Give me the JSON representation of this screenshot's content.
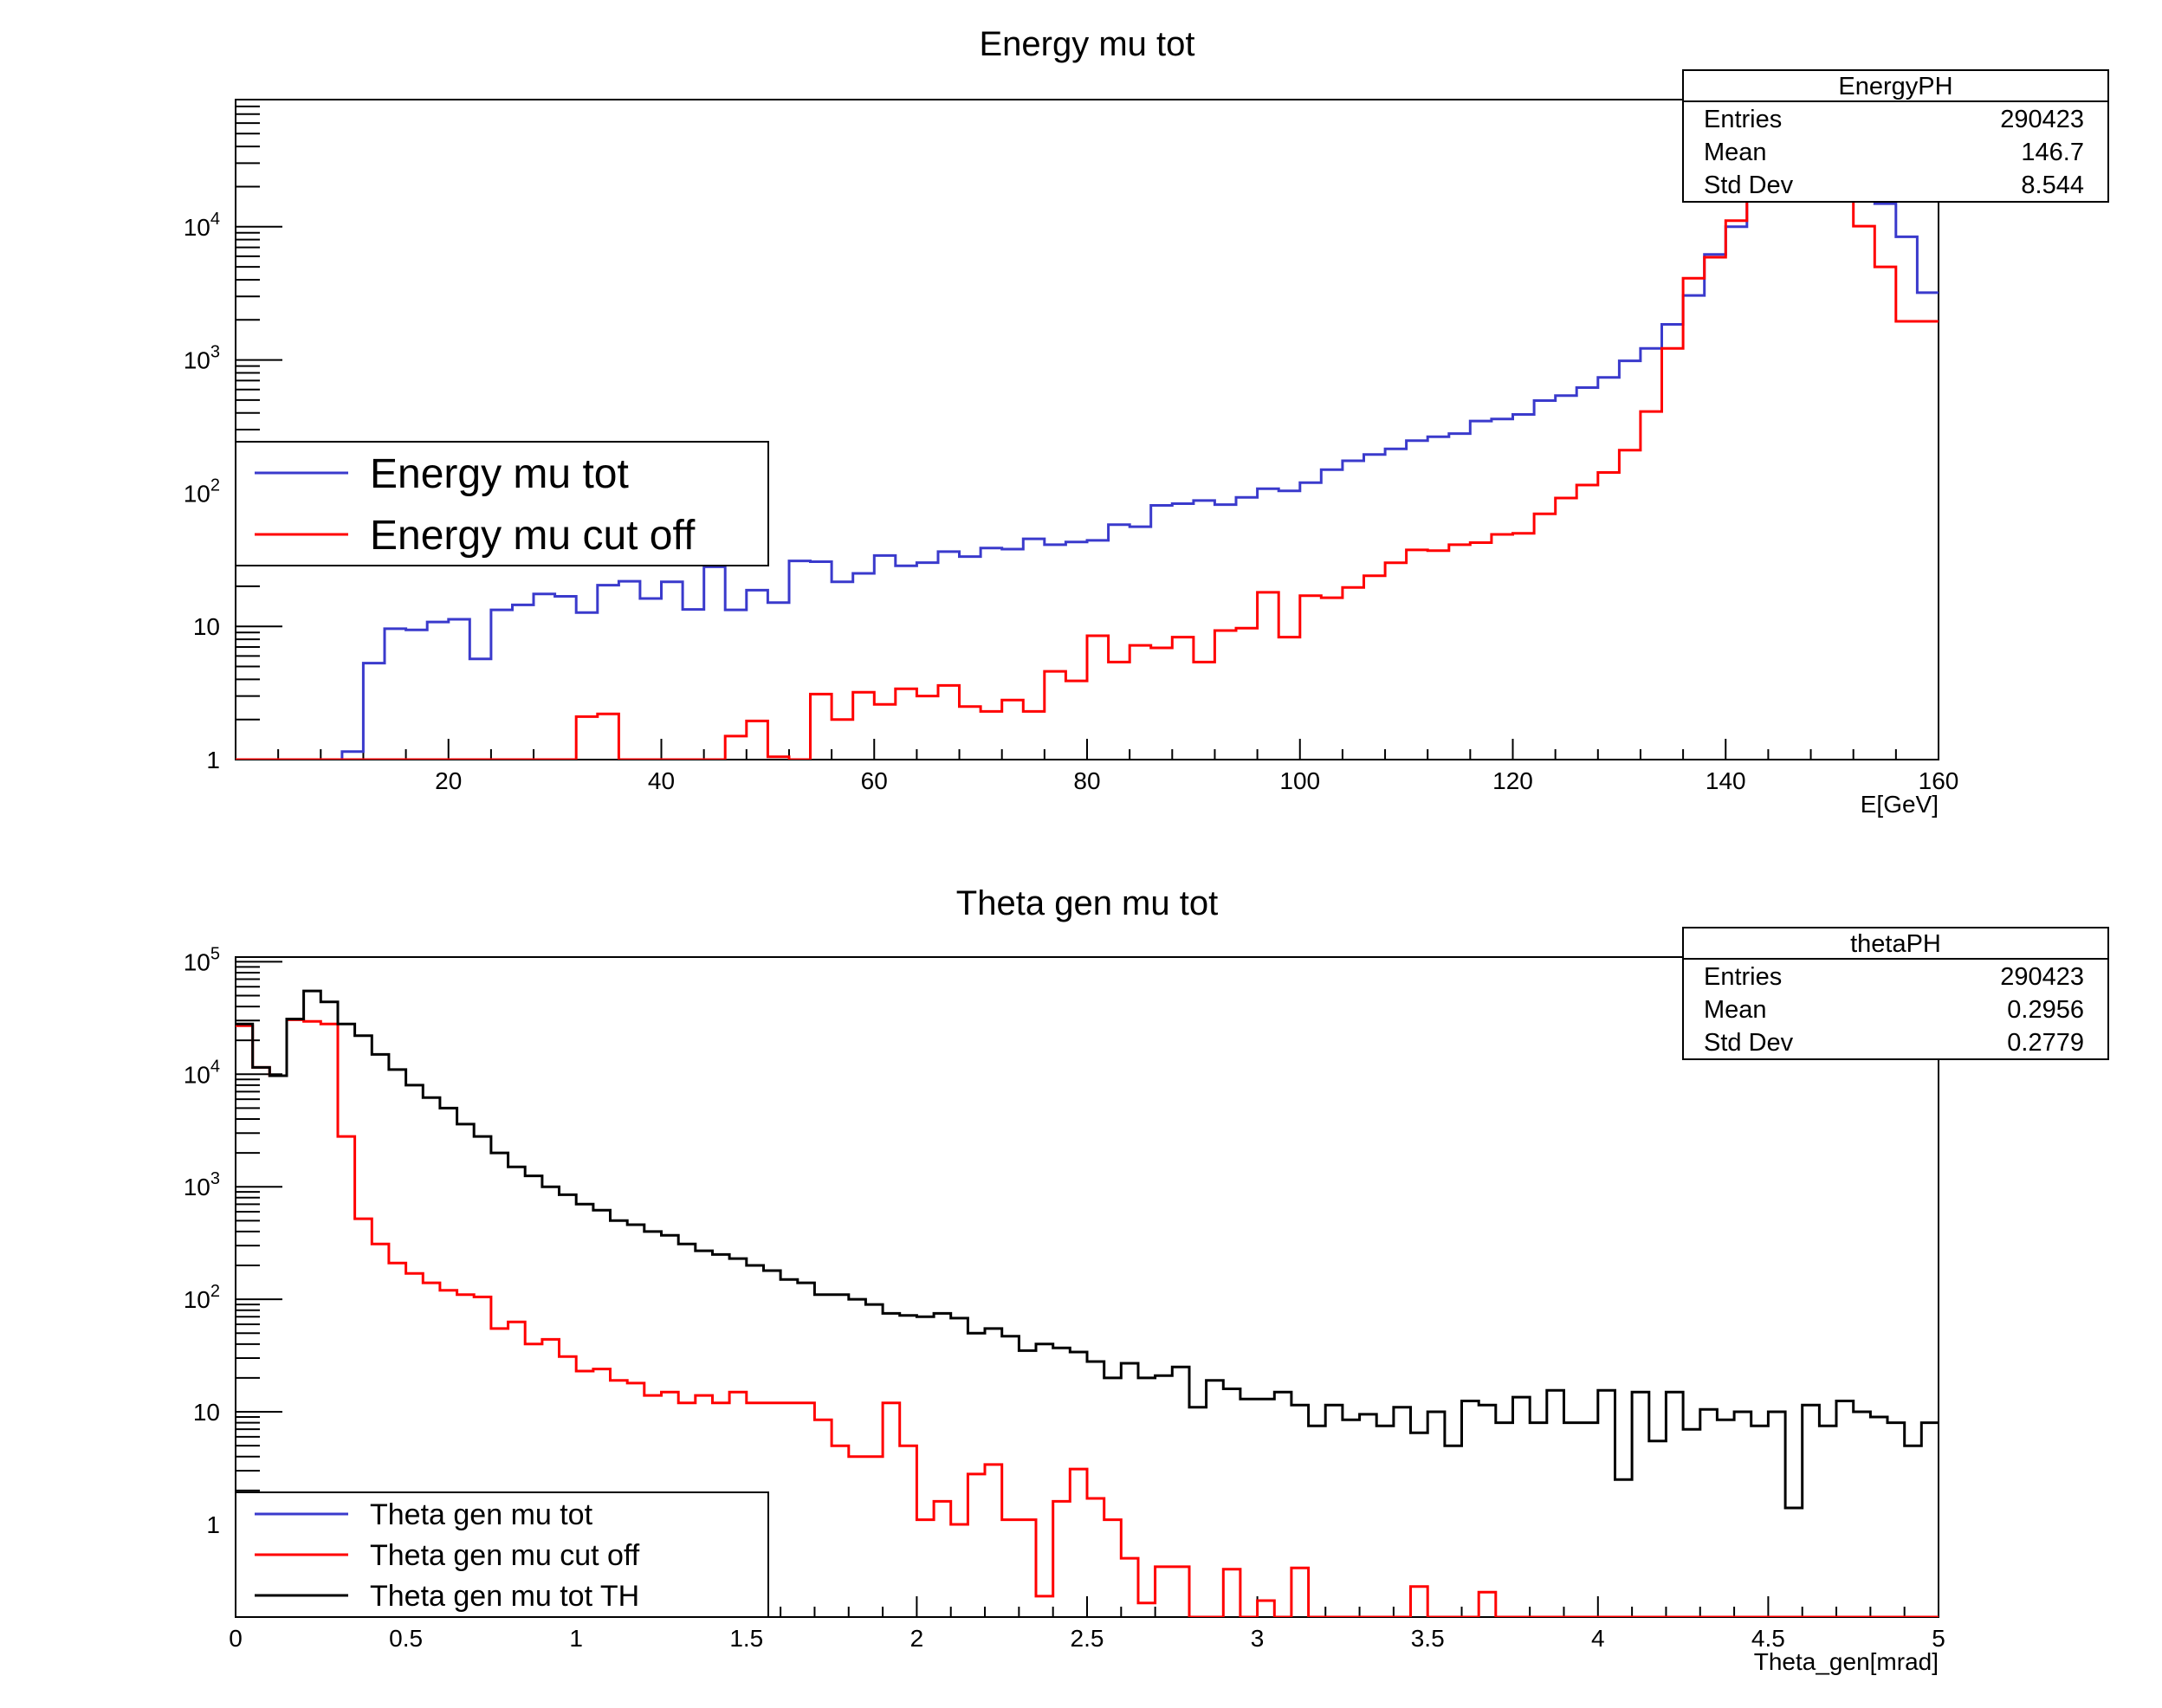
{
  "chart_data": [
    {
      "type": "histogram-step",
      "title": "Energy mu tot",
      "xlabel": "E[GeV]",
      "ylabel": "",
      "xlim": [
        0,
        160
      ],
      "ylim": [
        1,
        90000
      ],
      "yscale": "log",
      "x_ticks": [
        "20",
        "40",
        "60",
        "80",
        "100",
        "120",
        "140",
        "160"
      ],
      "y_ticks": [
        "1",
        "10",
        "10^2",
        "10^3",
        "10^4"
      ],
      "bin_width": 2,
      "legend": {
        "placement": "middle-left"
      },
      "series": [
        {
          "name": "Energy mu tot",
          "color": "#3a3acc",
          "x_start": 0,
          "values": [
            1,
            1,
            1,
            1,
            1,
            1.15,
            5.3,
            9.6,
            9.4,
            10.8,
            11.3,
            5.7,
            13.3,
            14.5,
            17.5,
            16.8,
            12.7,
            20.4,
            21.8,
            16.2,
            21.6,
            13.4,
            28,
            13.3,
            18.7,
            15.1,
            31,
            30.6,
            21.6,
            25,
            34,
            28.5,
            30.1,
            36.4,
            33.4,
            38.7,
            38,
            45.4,
            41,
            43,
            44.2,
            58,
            56,
            81,
            83.4,
            88,
            82,
            93,
            108,
            104,
            120,
            150,
            175,
            195,
            215,
            248,
            265,
            280,
            348,
            360,
            390,
            495,
            540,
            620,
            740,
            985,
            1220,
            1850,
            3050,
            6200,
            10000,
            16700,
            22400,
            23500,
            24000,
            23800,
            21800,
            14900,
            8400,
            3200
          ]
        },
        {
          "name": "Energy mu cut off",
          "color": "#ff0000",
          "x_start": 0,
          "values": [
            1,
            1,
            1,
            1,
            1,
            1,
            1,
            1,
            1,
            1,
            1,
            1,
            1,
            1,
            1,
            1,
            2.1,
            2.2,
            1,
            1,
            1,
            1,
            1,
            1.5,
            1.95,
            1.05,
            1,
            3.1,
            2,
            3.2,
            2.6,
            3.4,
            3,
            3.6,
            2.5,
            2.3,
            2.8,
            2.3,
            4.6,
            3.9,
            8.5,
            5.4,
            7.2,
            6.9,
            8.3,
            5.4,
            9.3,
            9.7,
            18,
            8.3,
            17,
            16.4,
            19.6,
            24,
            30,
            37.5,
            37,
            41,
            42.5,
            49,
            50,
            70,
            92,
            115,
            143,
            210,
            410,
            1220,
            4100,
            5900,
            11100,
            17000,
            19200,
            20000,
            19400,
            15700,
            10100,
            5000,
            1950,
            1950
          ]
        }
      ],
      "stats_box": {
        "title": "EnergyPH",
        "rows": [
          {
            "label": "Entries",
            "value": "290423"
          },
          {
            "label": "Mean",
            "value": "146.7"
          },
          {
            "label": "Std Dev",
            "value": "8.544"
          }
        ]
      }
    },
    {
      "type": "histogram-step",
      "title": "Theta gen mu tot",
      "xlabel": "Theta_gen[mrad]",
      "ylabel": "",
      "xlim": [
        0,
        5
      ],
      "ylim": [
        0.15,
        110000
      ],
      "yscale": "log",
      "x_ticks": [
        "0",
        "0.5",
        "1",
        "1.5",
        "2",
        "2.5",
        "3",
        "3.5",
        "4",
        "4.5",
        "5"
      ],
      "y_ticks": [
        "1",
        "10",
        "10^2",
        "10^3",
        "10^4",
        "10^5"
      ],
      "bin_width": 0.05,
      "legend": {
        "placement": "bottom-left"
      },
      "series": [
        {
          "name": "Theta gen mu tot",
          "color": "#3a3acc",
          "x_start": 0,
          "values": []
        },
        {
          "name": "Theta gen mu cut off",
          "color": "#ff0000",
          "x_start": 0,
          "values": [
            27000,
            11500,
            9700,
            30500,
            29500,
            28000,
            2800,
            520,
            310,
            210,
            170,
            140,
            120,
            110,
            105,
            55,
            63,
            40,
            44,
            31,
            23,
            24,
            19,
            18,
            14,
            15,
            12,
            14,
            12,
            15,
            12,
            12,
            12,
            12,
            8.5,
            5,
            4,
            4,
            12,
            5,
            1.1,
            1.6,
            1,
            2.8,
            3.4,
            1.1,
            1.1,
            0.23,
            1.6,
            3.1,
            1.7,
            1.1,
            0.5,
            0.2,
            0.42,
            0.42,
            0.1,
            0.1,
            0.4,
            0.14,
            0.21,
            0.1,
            0.41,
            0.1,
            0.1,
            0.1,
            0.1,
            0.1,
            0.1,
            0.28,
            0.1,
            0.1,
            0.1,
            0.25,
            0.1,
            0.1,
            0.1,
            0.1,
            0.1,
            0.1,
            0.1,
            0.1,
            0.1,
            0.1,
            0.1,
            0.1,
            0.1,
            0.1,
            0.1,
            0.1,
            0.1,
            0.1,
            0.1,
            0.1,
            0.1,
            0.1,
            0.1,
            0.1,
            0.1,
            0.1
          ]
        },
        {
          "name": "Theta gen mu tot TH",
          "color": "#000000",
          "x_start": 0,
          "values": [
            28000,
            11500,
            9700,
            31000,
            55000,
            44000,
            28000,
            22000,
            15000,
            11000,
            8000,
            6200,
            5000,
            3600,
            2800,
            2000,
            1500,
            1250,
            1000,
            850,
            700,
            620,
            500,
            460,
            400,
            370,
            310,
            270,
            250,
            230,
            200,
            180,
            150,
            140,
            110,
            110,
            100,
            90,
            75,
            72,
            70,
            75,
            68,
            50,
            55,
            47,
            35,
            40,
            37,
            34,
            28,
            20,
            27,
            20,
            21,
            25,
            11,
            19,
            16,
            13,
            13,
            15,
            11.5,
            7.5,
            11.5,
            8.5,
            9.5,
            7.5,
            11,
            6.5,
            10,
            5,
            12.5,
            11.5,
            8,
            13.5,
            8,
            15.5,
            8,
            8,
            15.5,
            2.5,
            15,
            5.5,
            15,
            7,
            10.5,
            8.5,
            10,
            7.5,
            10,
            1.4,
            11.5,
            7.5,
            12.5,
            10,
            9,
            8,
            5,
            8,
            8,
            4.5,
            8,
            0.3
          ]
        }
      ],
      "stats_box": {
        "title": "thetaPH",
        "rows": [
          {
            "label": "Entries",
            "value": "290423"
          },
          {
            "label": "Mean",
            "value": "0.2956"
          },
          {
            "label": "Std Dev",
            "value": "0.2779"
          }
        ]
      }
    }
  ]
}
